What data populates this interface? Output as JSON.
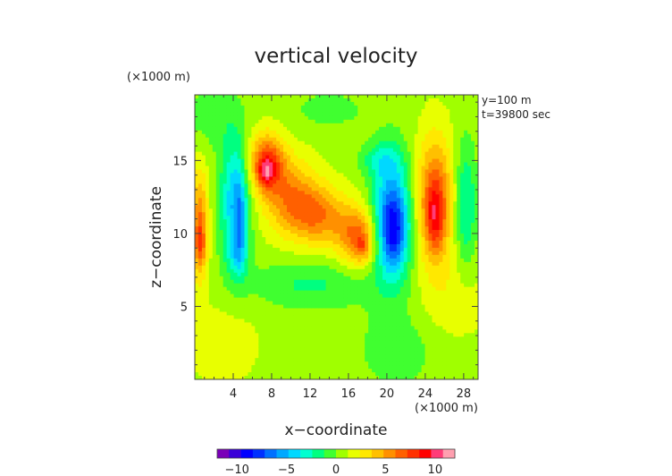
{
  "chart_data": {
    "type": "heatmap",
    "title": "vertical velocity",
    "xlabel": "x−coordinate",
    "ylabel": "z−coordinate",
    "x_unit": "(×1000 m)",
    "y_unit": "(×1000 m)",
    "annotations": [
      "y=100 m",
      "t=39800 sec"
    ],
    "xlim": [
      0,
      29.5
    ],
    "ylim": [
      0,
      19.5
    ],
    "xticks": [
      4,
      8,
      12,
      16,
      20,
      24,
      28
    ],
    "xtick_labels": [
      "4",
      "8",
      "12",
      "16",
      "20",
      "24",
      "28"
    ],
    "yticks": [
      5,
      10,
      15
    ],
    "ytick_labels": [
      "5",
      "10",
      "15"
    ],
    "colorbar": {
      "ticks": [
        -10,
        -5,
        0,
        5,
        10
      ],
      "tick_labels": [
        "−10",
        "−5",
        "0",
        "5",
        "10"
      ],
      "range": [
        -12,
        12
      ],
      "colors": [
        "#7a00b8",
        "#3a00d8",
        "#0000ff",
        "#0030ff",
        "#0070ff",
        "#00a8ff",
        "#00d8ff",
        "#00ffd0",
        "#00ff80",
        "#40ff30",
        "#a0ff00",
        "#e8ff00",
        "#ffe800",
        "#ffc000",
        "#ff9000",
        "#ff6000",
        "#ff3000",
        "#ff0000",
        "#ff3c78",
        "#ff9fb0"
      ]
    },
    "background_level": 0.8,
    "features": [
      {
        "name": "left-edge-updraft",
        "x": 0.5,
        "z": 10.5,
        "sx": 0.6,
        "sz": 2.6,
        "value": 5.5
      },
      {
        "name": "updraft-left-core",
        "x": 0.6,
        "z": 9.2,
        "sx": 0.35,
        "sz": 0.9,
        "value": 2.5
      },
      {
        "name": "downdraft-west",
        "x": 4.2,
        "z": 12.2,
        "sx": 1.1,
        "sz": 3.2,
        "value": -5.5
      },
      {
        "name": "downdraft-west-lower",
        "x": 4.5,
        "z": 8.5,
        "sx": 0.7,
        "sz": 1.0,
        "value": -2.5
      },
      {
        "name": "downdraft-west-core",
        "x": 4.7,
        "z": 11.0,
        "sx": 0.45,
        "sz": 2.0,
        "value": -2.5
      },
      {
        "name": "updraft-central-top",
        "x": 7.5,
        "z": 14.8,
        "sx": 1.3,
        "sz": 1.4,
        "value": 7.0
      },
      {
        "name": "updraft-central-core",
        "x": 7.4,
        "z": 14.2,
        "sx": 0.5,
        "sz": 0.6,
        "value": 3.0
      },
      {
        "name": "updraft-central-mid",
        "x": 10.0,
        "z": 12.5,
        "sx": 2.0,
        "sz": 1.8,
        "value": 4.5
      },
      {
        "name": "updraft-central-diag",
        "x": 13.0,
        "z": 11.2,
        "sx": 2.0,
        "sz": 1.4,
        "value": 4.5
      },
      {
        "name": "updraft-central-low",
        "x": 17.0,
        "z": 9.8,
        "sx": 1.5,
        "sz": 1.4,
        "value": 5.5
      },
      {
        "name": "updraft-central-low-core",
        "x": 17.5,
        "z": 9.0,
        "sx": 0.5,
        "sz": 0.6,
        "value": 2.5
      },
      {
        "name": "downdraft-main",
        "x": 20.5,
        "z": 11.0,
        "sx": 1.4,
        "sz": 3.0,
        "value": -7.5
      },
      {
        "name": "downdraft-main-top",
        "x": 19.2,
        "z": 15.0,
        "sx": 1.4,
        "sz": 0.8,
        "value": -2.5
      },
      {
        "name": "downdraft-main-core",
        "x": 20.7,
        "z": 10.0,
        "sx": 0.9,
        "sz": 1.6,
        "value": -3.5
      },
      {
        "name": "updraft-east",
        "x": 25.0,
        "z": 12.2,
        "sx": 1.3,
        "sz": 3.0,
        "value": 6.5
      },
      {
        "name": "updraft-east-core",
        "x": 25.0,
        "z": 11.0,
        "sx": 0.6,
        "sz": 1.5,
        "value": 3.0
      },
      {
        "name": "downdraft-east",
        "x": 28.2,
        "z": 12.0,
        "sx": 0.8,
        "sz": 3.0,
        "value": -3.5
      },
      {
        "name": "weak-down-mid-low",
        "x": 12.0,
        "z": 6.5,
        "sx": 4.5,
        "sz": 1.2,
        "value": -2.2
      },
      {
        "name": "weak-down-bottom-right",
        "x": 21.0,
        "z": 2.0,
        "sx": 3.0,
        "sz": 2.0,
        "value": -1.5
      },
      {
        "name": "weak-down-upper-left",
        "x": 1.5,
        "z": 18.0,
        "sx": 2.0,
        "sz": 1.5,
        "value": -1.5
      },
      {
        "name": "weak-down-upper-mid",
        "x": 14.0,
        "z": 18.5,
        "sx": 3.0,
        "sz": 1.0,
        "value": -1.3
      },
      {
        "name": "weak-up-bottom-left",
        "x": 3.0,
        "z": 2.5,
        "sx": 2.5,
        "sz": 2.0,
        "value": 1.2
      },
      {
        "name": "weak-up-right-low",
        "x": 27.0,
        "z": 5.5,
        "sx": 2.5,
        "sz": 2.0,
        "value": 1.2
      }
    ]
  }
}
